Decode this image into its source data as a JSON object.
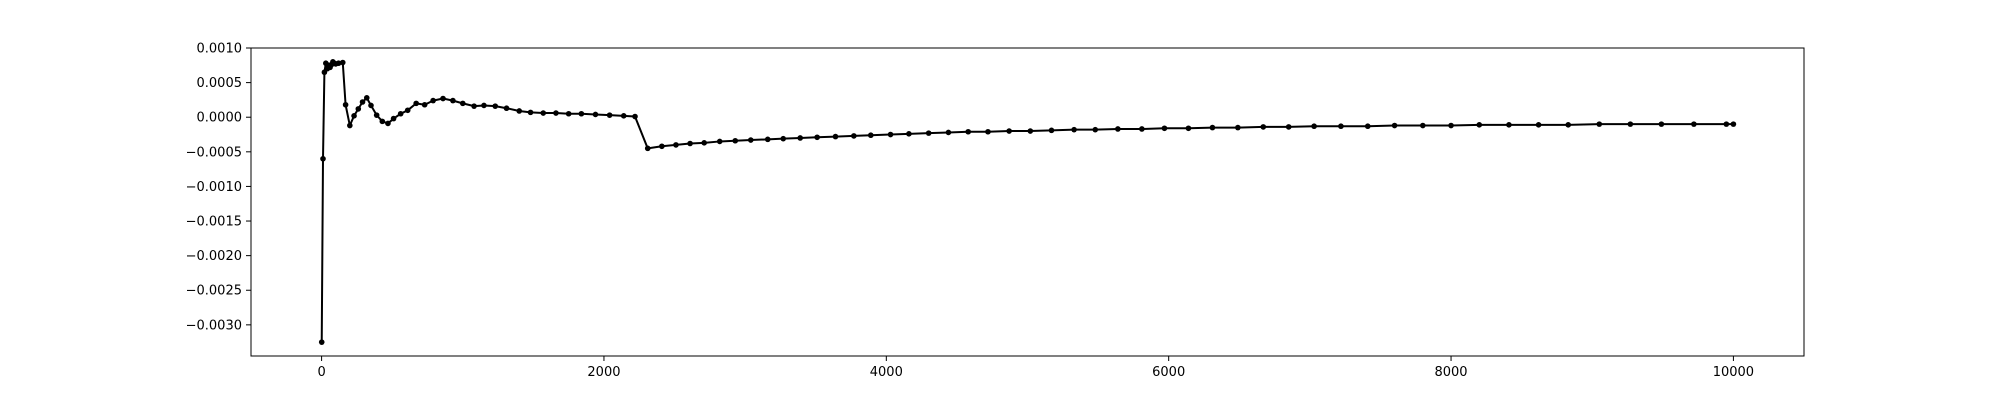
{
  "chart_data": {
    "type": "line",
    "title": "",
    "xlabel": "",
    "ylabel": "",
    "xlim": [
      -500,
      10500
    ],
    "ylim": [
      -0.00345,
      0.001
    ],
    "xticks": [
      0,
      2000,
      4000,
      6000,
      8000,
      10000
    ],
    "xtick_labels": [
      "0",
      "2000",
      "4000",
      "6000",
      "8000",
      "10000"
    ],
    "yticks": [
      0.001,
      0.0005,
      0.0,
      -0.0005,
      -0.001,
      -0.0015,
      -0.002,
      -0.0025,
      -0.003
    ],
    "ytick_labels": [
      "0.0010",
      "0.0005",
      "0.0000",
      "−0.0005",
      "−0.0010",
      "−0.0015",
      "−0.0020",
      "−0.0025",
      "−0.0030"
    ],
    "grid": false,
    "series": [
      {
        "color": "#000000",
        "marker": "circle",
        "x": [
          1,
          10,
          20,
          30,
          40,
          50,
          60,
          70,
          80,
          90,
          100,
          120,
          150,
          170,
          200,
          230,
          260,
          290,
          320,
          350,
          390,
          430,
          470,
          510,
          560,
          610,
          670,
          730,
          790,
          860,
          930,
          1000,
          1080,
          1150,
          1230,
          1310,
          1400,
          1480,
          1570,
          1660,
          1750,
          1840,
          1940,
          2040,
          2140,
          2220,
          2310,
          2410,
          2510,
          2610,
          2710,
          2820,
          2930,
          3040,
          3160,
          3270,
          3390,
          3510,
          3640,
          3770,
          3890,
          4030,
          4160,
          4300,
          4440,
          4580,
          4720,
          4870,
          5020,
          5170,
          5330,
          5480,
          5640,
          5810,
          5970,
          6140,
          6310,
          6490,
          6670,
          6850,
          7030,
          7220,
          7410,
          7600,
          7800,
          8000,
          8200,
          8410,
          8620,
          8830,
          9050,
          9270,
          9490,
          9720,
          9950,
          10000
        ],
        "y": [
          -0.00325,
          -0.0006,
          0.00065,
          0.00078,
          0.0007,
          0.00075,
          0.00072,
          0.00076,
          0.0008,
          0.00078,
          0.00077,
          0.00078,
          0.00079,
          0.00018,
          -0.00012,
          2e-05,
          0.00012,
          0.00022,
          0.00028,
          0.00017,
          3e-05,
          -6e-05,
          -9e-05,
          -2e-05,
          5e-05,
          0.0001,
          0.0002,
          0.00018,
          0.00024,
          0.00027,
          0.00024,
          0.0002,
          0.00016,
          0.00017,
          0.00016,
          0.00013,
          9e-05,
          7e-05,
          6e-05,
          6e-05,
          5e-05,
          5e-05,
          4e-05,
          3e-05,
          2e-05,
          1e-05,
          -0.00045,
          -0.00042,
          -0.0004,
          -0.00038,
          -0.00037,
          -0.00035,
          -0.00034,
          -0.00033,
          -0.00032,
          -0.00031,
          -0.0003,
          -0.00029,
          -0.00028,
          -0.00027,
          -0.00026,
          -0.00025,
          -0.00024,
          -0.00023,
          -0.00022,
          -0.00021,
          -0.00021,
          -0.0002,
          -0.0002,
          -0.00019,
          -0.00018,
          -0.00018,
          -0.00017,
          -0.00017,
          -0.00016,
          -0.00016,
          -0.00015,
          -0.00015,
          -0.00014,
          -0.00014,
          -0.00013,
          -0.00013,
          -0.00013,
          -0.00012,
          -0.00012,
          -0.00012,
          -0.00011,
          -0.00011,
          -0.00011,
          -0.00011,
          -0.0001,
          -0.0001,
          -0.0001,
          -0.0001,
          -0.0001,
          -0.0001
        ]
      }
    ]
  }
}
